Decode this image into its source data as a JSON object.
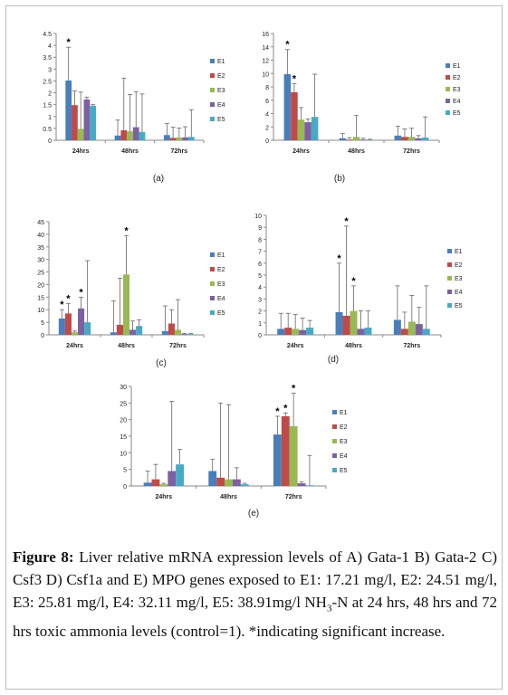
{
  "caption": {
    "label": "Figure 8:",
    "text": "Liver relative mRNA expression levels of A) Gata-1 B) Gata-2 C) Csf3 D) Csf1a and E) MPO genes exposed to E1: 17.21 mg/l, E2: 24.51 mg/l, E3: 25.81 mg/l, E4: 32.11 mg/l, E5: 38.91mg/l NH",
    "sub": "3",
    "text_end": "-N at 24 hrs, 48 hrs and 72 hrs toxic ammonia levels (control=1). *indicating significant increase."
  },
  "colors": {
    "E1": "#4a7ebb",
    "E2": "#be4b48",
    "E3": "#98b954",
    "E4": "#7d60a0",
    "E5": "#46aac5"
  },
  "chart_data": [
    {
      "type": "bar",
      "panel_label": "(a)",
      "categories": [
        "24hrs",
        "48hrs",
        "72hrs"
      ],
      "ylim": [
        0,
        4.5
      ],
      "yticks": [
        "0",
        "0.5",
        "1",
        "1.5",
        "2",
        "2.5",
        "3",
        "3.5",
        "4",
        "4.5"
      ],
      "series": [
        {
          "name": "E1",
          "values": [
            2.52,
            0.2,
            0.22
          ],
          "errors": [
            1.4,
            0.65,
            0.48
          ]
        },
        {
          "name": "E2",
          "values": [
            1.48,
            0.42,
            0.1
          ],
          "errors": [
            0.6,
            2.2,
            0.45
          ]
        },
        {
          "name": "E3",
          "values": [
            0.48,
            0.38,
            0.12
          ],
          "errors": [
            1.55,
            1.55,
            0.4
          ]
        },
        {
          "name": "E4",
          "values": [
            1.72,
            0.55,
            0.12
          ],
          "errors": [
            0.1,
            1.5,
            0.45
          ]
        },
        {
          "name": "E5",
          "values": [
            1.45,
            0.35,
            0.14
          ],
          "errors": [
            0.05,
            1.6,
            1.15
          ]
        }
      ],
      "significant": [
        {
          "series": 0,
          "category": 0
        }
      ]
    },
    {
      "type": "bar",
      "panel_label": "(b)",
      "categories": [
        "24hrs",
        "48hrs",
        "72hrs"
      ],
      "ylim": [
        0,
        16
      ],
      "yticks": [
        "0",
        "2",
        "4",
        "6",
        "8",
        "10",
        "12",
        "14",
        "16"
      ],
      "series": [
        {
          "name": "E1",
          "values": [
            9.9,
            0.3,
            0.7
          ],
          "errors": [
            3.7,
            0.7,
            1.4
          ]
        },
        {
          "name": "E2",
          "values": [
            7.2,
            0.1,
            0.5
          ],
          "errors": [
            1.3,
            0.3,
            1.2
          ]
        },
        {
          "name": "E3",
          "values": [
            3.1,
            0.5,
            0.5
          ],
          "errors": [
            1.8,
            3.2,
            1.3
          ]
        },
        {
          "name": "E4",
          "values": [
            2.7,
            0.1,
            0.3
          ],
          "errors": [
            0.5,
            0.2,
            0.4
          ]
        },
        {
          "name": "E5",
          "values": [
            3.5,
            0.05,
            0.4
          ],
          "errors": [
            6.4,
            0.1,
            3.1
          ]
        }
      ],
      "significant": [
        {
          "series": 0,
          "category": 0
        },
        {
          "series": 1,
          "category": 0
        }
      ]
    },
    {
      "type": "bar",
      "panel_label": "(c)",
      "categories": [
        "24hrs",
        "48hrs",
        "72hrs"
      ],
      "ylim": [
        0,
        45
      ],
      "yticks": [
        "0",
        "5",
        "10",
        "15",
        "20",
        "25",
        "30",
        "35",
        "40",
        "45"
      ],
      "series": [
        {
          "name": "E1",
          "values": [
            6.5,
            1,
            1.5
          ],
          "errors": [
            3.5,
            12.5,
            10
          ]
        },
        {
          "name": "E2",
          "values": [
            8.5,
            4,
            4.5
          ],
          "errors": [
            4,
            18.5,
            5.5
          ]
        },
        {
          "name": "E3",
          "values": [
            1,
            24,
            2
          ],
          "errors": [
            0.5,
            15.5,
            12
          ]
        },
        {
          "name": "E4",
          "values": [
            10.5,
            2,
            0.3
          ],
          "errors": [
            4.5,
            3.5,
            0.3
          ]
        },
        {
          "name": "E5",
          "values": [
            5,
            3.5,
            0.3
          ],
          "errors": [
            24.5,
            2.5,
            0.2
          ]
        }
      ],
      "significant": [
        {
          "series": 0,
          "category": 0
        },
        {
          "series": 1,
          "category": 0
        },
        {
          "series": 3,
          "category": 0
        },
        {
          "series": 2,
          "category": 1
        }
      ]
    },
    {
      "type": "bar",
      "panel_label": "(d)",
      "categories": [
        "24hrs",
        "48hrs",
        "72hrs"
      ],
      "ylim": [
        0,
        10
      ],
      "yticks": [
        "0",
        "1",
        "2",
        "3",
        "4",
        "5",
        "6",
        "7",
        "8",
        "9",
        "10"
      ],
      "series": [
        {
          "name": "E1",
          "values": [
            0.5,
            1.9,
            1.25
          ],
          "errors": [
            1.3,
            4.1,
            2.85
          ]
        },
        {
          "name": "E2",
          "values": [
            0.6,
            1.6,
            0.5
          ],
          "errors": [
            1.2,
            7.5,
            1.4
          ]
        },
        {
          "name": "E3",
          "values": [
            0.5,
            2,
            1.1
          ],
          "errors": [
            1.2,
            2.1,
            2.2
          ]
        },
        {
          "name": "E4",
          "values": [
            0.4,
            0.5,
            0.9
          ],
          "errors": [
            1,
            1.5,
            1.4
          ]
        },
        {
          "name": "E5",
          "values": [
            0.6,
            0.6,
            0.5
          ],
          "errors": [
            0.6,
            1.4,
            3.6
          ]
        }
      ],
      "significant": [
        {
          "series": 0,
          "category": 1
        },
        {
          "series": 1,
          "category": 1
        },
        {
          "series": 2,
          "category": 1
        }
      ]
    },
    {
      "type": "bar",
      "panel_label": "(e)",
      "categories": [
        "24hrs",
        "48hrs",
        "72hrs"
      ],
      "ylim": [
        0,
        30
      ],
      "yticks": [
        "0",
        "5",
        "10",
        "15",
        "20",
        "25",
        "30"
      ],
      "series": [
        {
          "name": "E1",
          "values": [
            1,
            4.5,
            15.5
          ],
          "errors": [
            3.5,
            3.5,
            5.5
          ]
        },
        {
          "name": "E2",
          "values": [
            2,
            2.5,
            21
          ],
          "errors": [
            4.5,
            22.5,
            1
          ]
        },
        {
          "name": "E3",
          "values": [
            0.5,
            2,
            18
          ],
          "errors": [
            0.3,
            22.5,
            10
          ]
        },
        {
          "name": "E4",
          "values": [
            4.5,
            2,
            0.8
          ],
          "errors": [
            21,
            3.5,
            0.5
          ]
        },
        {
          "name": "E5",
          "values": [
            6.5,
            0.5,
            0.2
          ],
          "errors": [
            4.5,
            0.3,
            9
          ]
        }
      ],
      "significant": [
        {
          "series": 0,
          "category": 2
        },
        {
          "series": 1,
          "category": 2
        },
        {
          "series": 2,
          "category": 2
        }
      ]
    }
  ]
}
